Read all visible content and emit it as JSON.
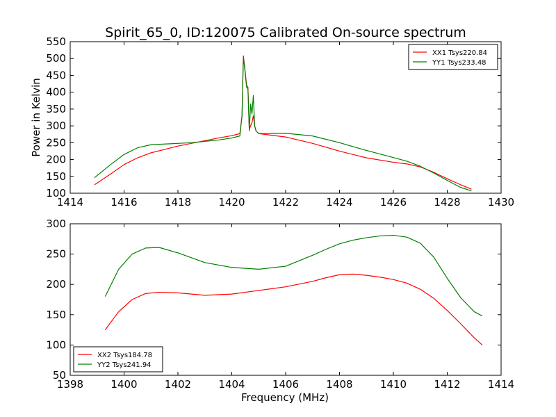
{
  "chart_data": [
    {
      "type": "line",
      "title": "Spirit_65_0, ID:120075 Calibrated On-source spectrum",
      "xlabel": "",
      "ylabel": "Power in Kelvin",
      "xlim": [
        1414,
        1430
      ],
      "ylim": [
        100,
        550
      ],
      "xticks": [
        "1414",
        "1416",
        "1418",
        "1420",
        "1422",
        "1424",
        "1426",
        "1428",
        "1430"
      ],
      "yticks": [
        "100",
        "150",
        "200",
        "250",
        "300",
        "350",
        "400",
        "450",
        "500",
        "550"
      ],
      "grid": false,
      "legend_position": "top-right",
      "series": [
        {
          "name": "XX1 Tsys220.84",
          "color": "#ff0000",
          "x": [
            1414.9,
            1415.5,
            1416,
            1416.5,
            1417,
            1417.5,
            1418,
            1418.5,
            1419,
            1419.5,
            1420,
            1420.3,
            1420.38,
            1420.43,
            1420.48,
            1420.55,
            1420.6,
            1420.65,
            1420.7,
            1420.75,
            1420.8,
            1420.85,
            1420.9,
            1421,
            1421.2,
            1422,
            1423,
            1424,
            1425,
            1426,
            1426.5,
            1427,
            1427.5,
            1428,
            1428.5,
            1428.9
          ],
          "y": [
            125,
            157,
            185,
            205,
            220,
            230,
            240,
            248,
            256,
            264,
            271,
            277,
            330,
            508,
            475,
            420,
            415,
            290,
            300,
            310,
            330,
            300,
            285,
            277,
            275,
            267,
            248,
            225,
            205,
            192,
            187,
            178,
            162,
            143,
            125,
            112
          ]
        },
        {
          "name": "YY1 Tsys233.48",
          "color": "#008000",
          "x": [
            1414.9,
            1415.5,
            1416,
            1416.5,
            1417,
            1417.5,
            1418,
            1418.5,
            1419,
            1419.5,
            1420,
            1420.3,
            1420.38,
            1420.43,
            1420.48,
            1420.55,
            1420.6,
            1420.65,
            1420.7,
            1420.75,
            1420.8,
            1420.85,
            1420.9,
            1421,
            1421.2,
            1422,
            1423,
            1424,
            1425,
            1426,
            1426.5,
            1427,
            1427.5,
            1428,
            1428.5,
            1428.9
          ],
          "y": [
            146,
            185,
            215,
            235,
            244,
            246,
            248,
            250,
            254,
            258,
            264,
            270,
            330,
            503,
            470,
            415,
            410,
            285,
            365,
            335,
            390,
            300,
            285,
            277,
            277,
            278,
            270,
            250,
            227,
            206,
            195,
            180,
            160,
            138,
            117,
            107
          ]
        }
      ]
    },
    {
      "type": "line",
      "title": "",
      "xlabel": "Frequency (MHz)",
      "ylabel": "",
      "xlim": [
        1398,
        1414
      ],
      "ylim": [
        50,
        300
      ],
      "xticks": [
        "1398",
        "1400",
        "1402",
        "1404",
        "1406",
        "1408",
        "1410",
        "1412",
        "1414"
      ],
      "yticks": [
        "50",
        "100",
        "150",
        "200",
        "250",
        "300"
      ],
      "grid": false,
      "legend_position": "bottom-left",
      "series": [
        {
          "name": "XX2 Tsys184.78",
          "color": "#ff0000",
          "x": [
            1399.3,
            1399.8,
            1400.3,
            1400.8,
            1401.3,
            1402,
            1403,
            1404,
            1405,
            1406,
            1407,
            1407.5,
            1408,
            1408.5,
            1409,
            1409.5,
            1410,
            1410.5,
            1411,
            1411.5,
            1412,
            1412.5,
            1413,
            1413.3
          ],
          "y": [
            125,
            155,
            175,
            185,
            187,
            186,
            182,
            184,
            190,
            196,
            205,
            211,
            216,
            217,
            215,
            212,
            208,
            202,
            192,
            177,
            157,
            135,
            112,
            100
          ]
        },
        {
          "name": "YY2 Tsys241.94",
          "color": "#008000",
          "x": [
            1399.3,
            1399.8,
            1400.3,
            1400.8,
            1401.3,
            1402,
            1403,
            1404,
            1405,
            1406,
            1407,
            1407.5,
            1408,
            1408.5,
            1409,
            1409.5,
            1410,
            1410.5,
            1411,
            1411.5,
            1412,
            1412.5,
            1413,
            1413.3
          ],
          "y": [
            180,
            225,
            250,
            260,
            261,
            252,
            236,
            228,
            225,
            230,
            248,
            258,
            267,
            273,
            277,
            280,
            281,
            278,
            268,
            245,
            210,
            178,
            155,
            148
          ]
        }
      ]
    }
  ]
}
